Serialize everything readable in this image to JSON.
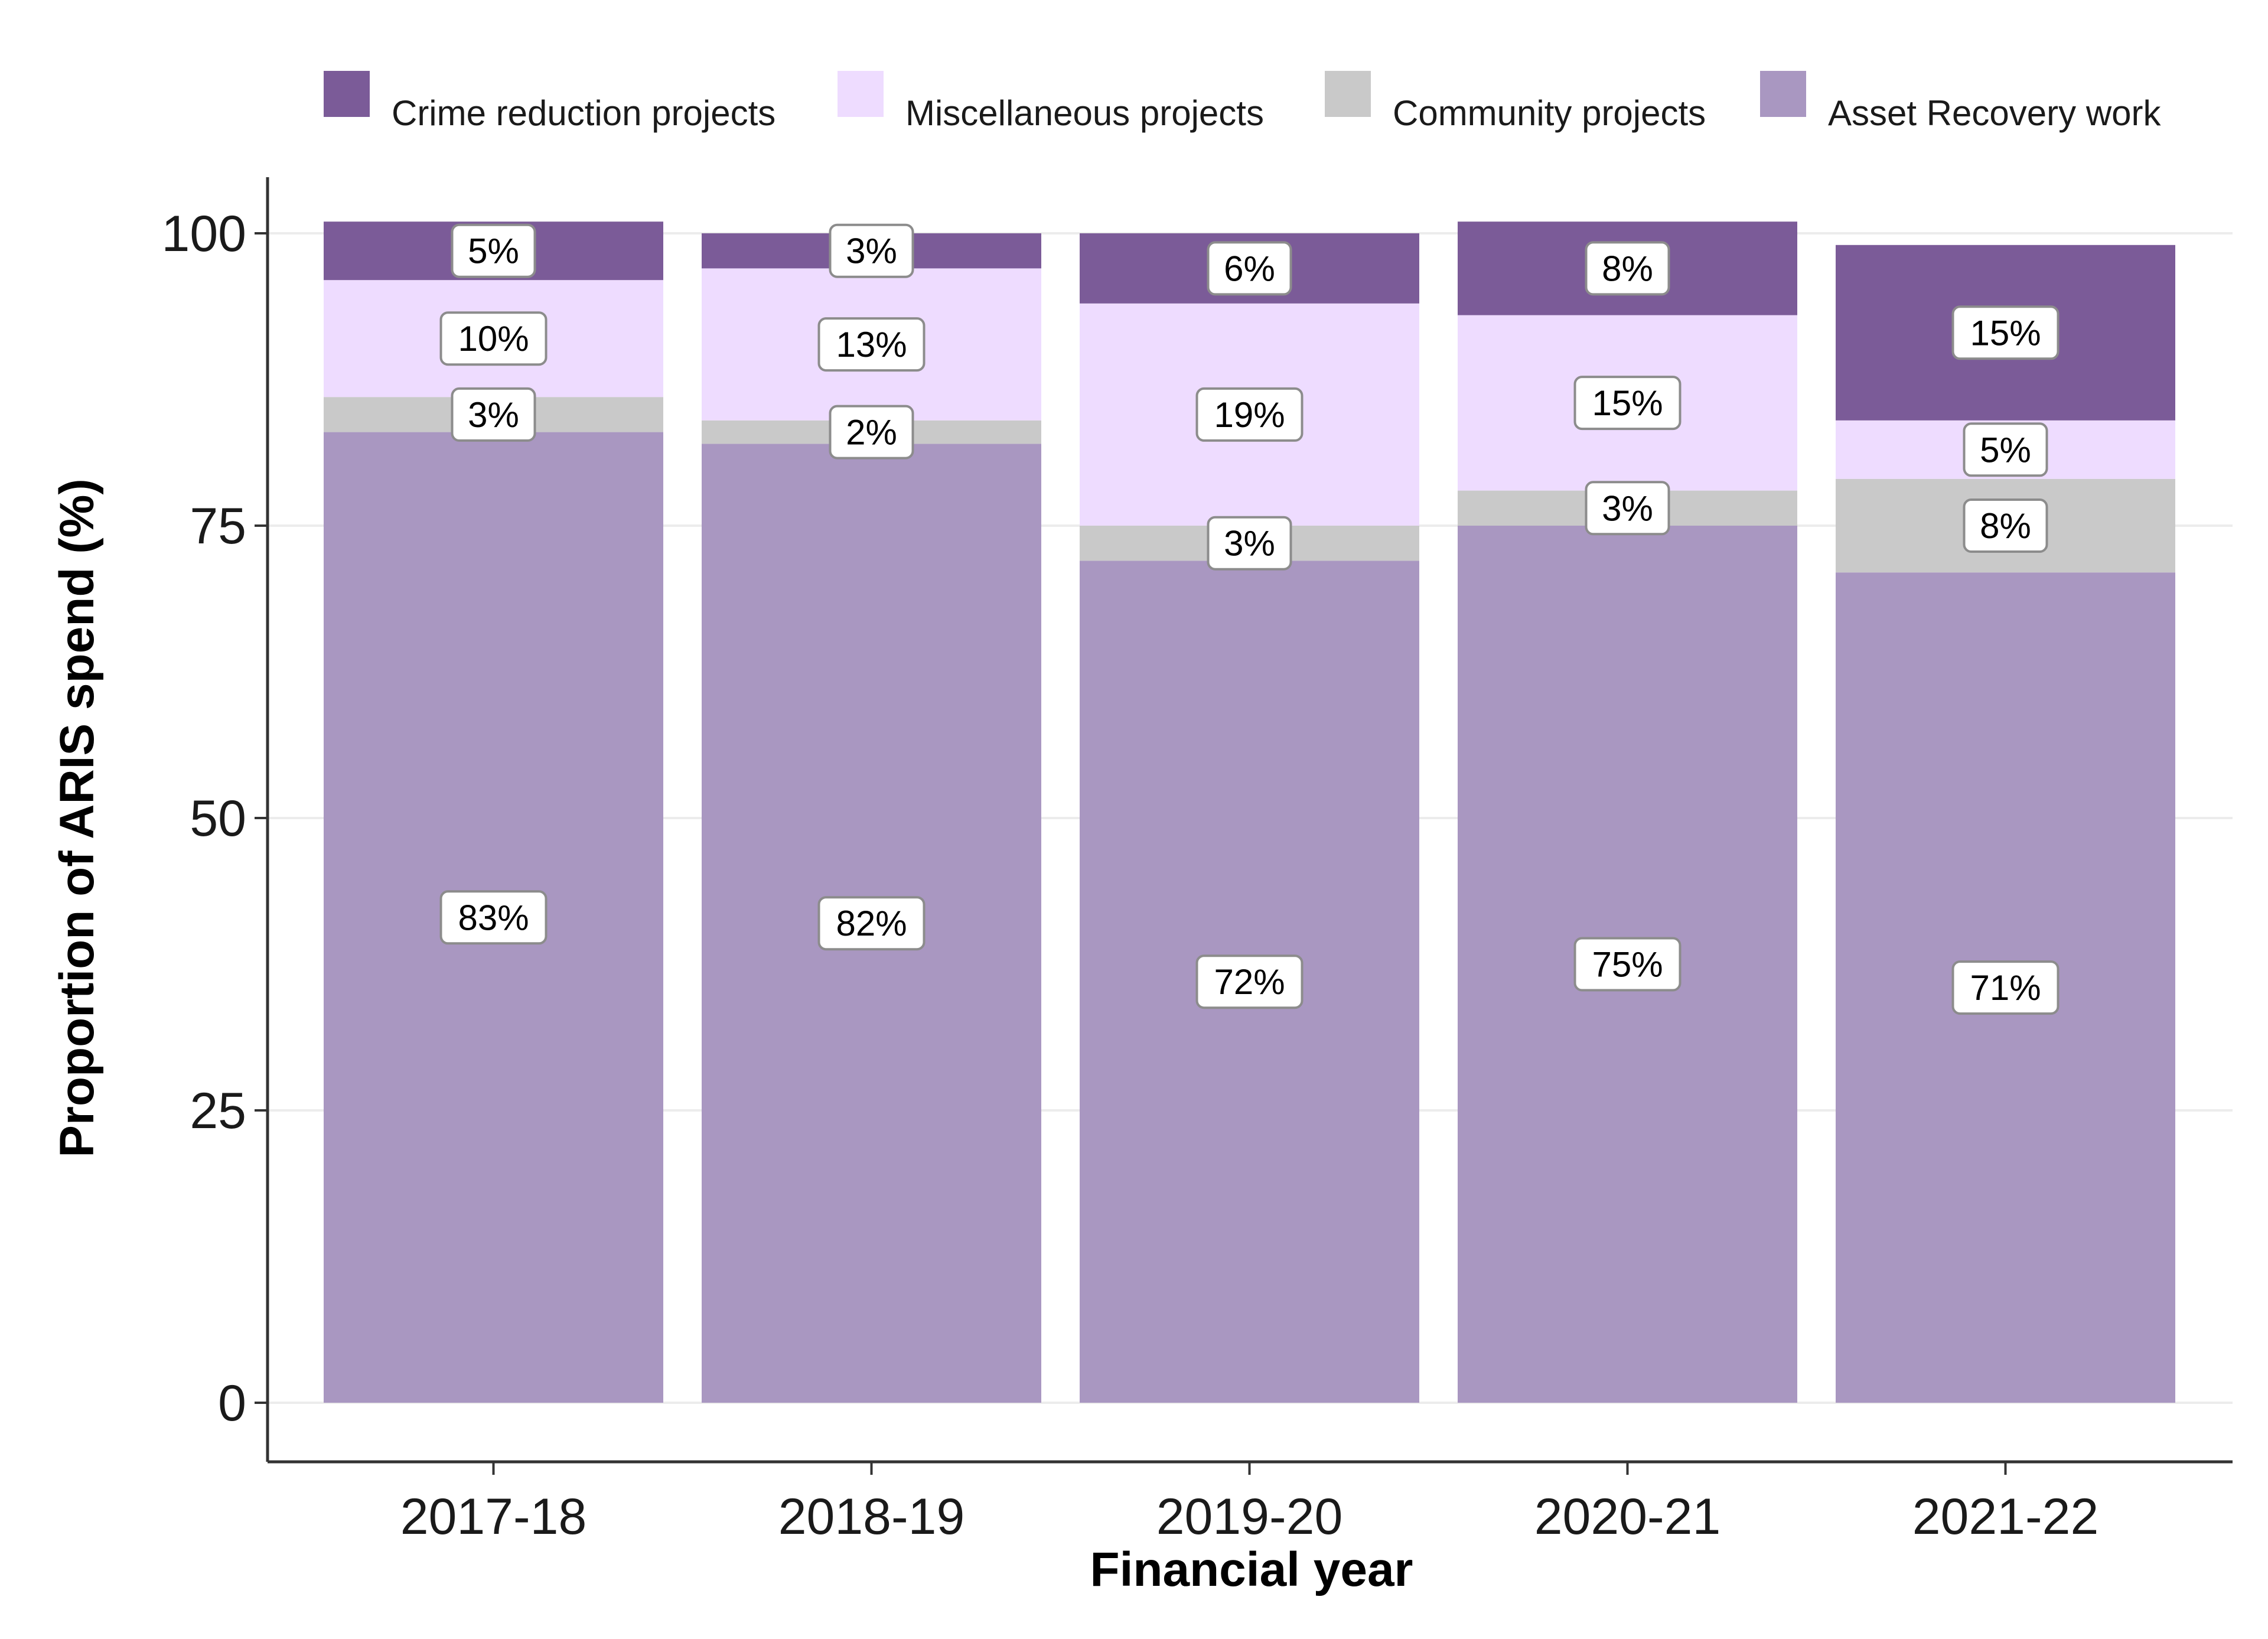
{
  "chart_data": {
    "type": "bar",
    "stacked": true,
    "title": "",
    "xlabel": "Financial year",
    "ylabel": "Proportion of ARIS spend (%)",
    "ylim": [
      0,
      100
    ],
    "yticks": [
      0,
      25,
      50,
      75,
      100
    ],
    "grid": true,
    "legend_position": "top",
    "categories": [
      "2017-18",
      "2018-19",
      "2019-20",
      "2020-21",
      "2021-22"
    ],
    "series": [
      {
        "name": "Asset Recovery work",
        "color": "#a997c1",
        "values": [
          83,
          82,
          72,
          75,
          71
        ]
      },
      {
        "name": "Community projects",
        "color": "#c9c9c9",
        "values": [
          3,
          2,
          3,
          3,
          8
        ]
      },
      {
        "name": "Miscellaneous projects",
        "color": "#eedcff",
        "values": [
          10,
          13,
          19,
          15,
          5
        ]
      },
      {
        "name": "Crime reduction projects",
        "color": "#7b5b98",
        "values": [
          5,
          3,
          6,
          8,
          15
        ]
      }
    ],
    "legend_order": [
      "Crime reduction projects",
      "Miscellaneous projects",
      "Community projects",
      "Asset Recovery work"
    ],
    "label_suffix": "%"
  }
}
